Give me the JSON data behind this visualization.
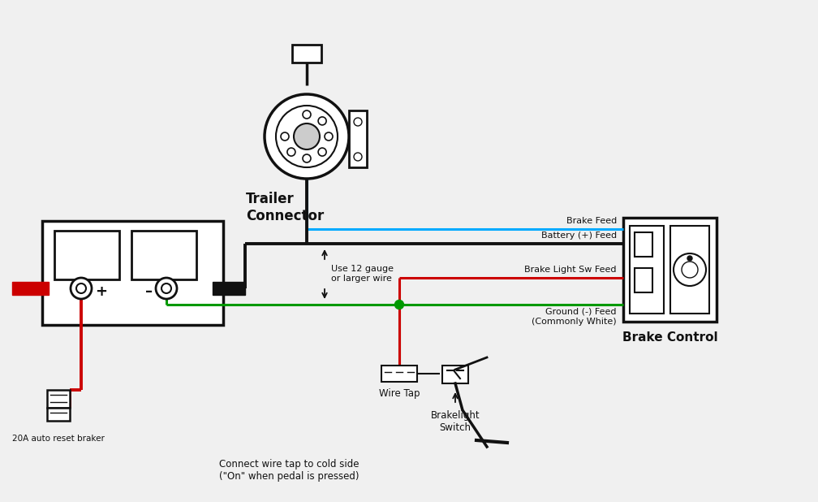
{
  "background_color": "#f0f0f0",
  "colors": {
    "blue": "#00aaff",
    "black": "#1a1a1a",
    "red": "#cc0000",
    "green": "#009900",
    "white": "#ffffff",
    "dark": "#111111",
    "gray": "#888888"
  },
  "labels": {
    "trailer_connector": "Trailer\nConnector",
    "brake_control": "Brake Control",
    "brake_feed": "Brake Feed",
    "battery_feed": "Battery (+) Feed",
    "brake_light_sw": "Brake Light Sw Feed",
    "ground_feed": "Ground (-) Feed\n(Commonly White)",
    "auto_reset": "20A auto reset braker",
    "use_12gauge": "Use 12 gauge\nor larger wire",
    "wire_tap": "Wire Tap",
    "brakelight_switch": "Brakelight\nSwitch",
    "connect_wire_tap": "Connect wire tap to cold side\n(\"On\" when pedal is pressed)"
  }
}
